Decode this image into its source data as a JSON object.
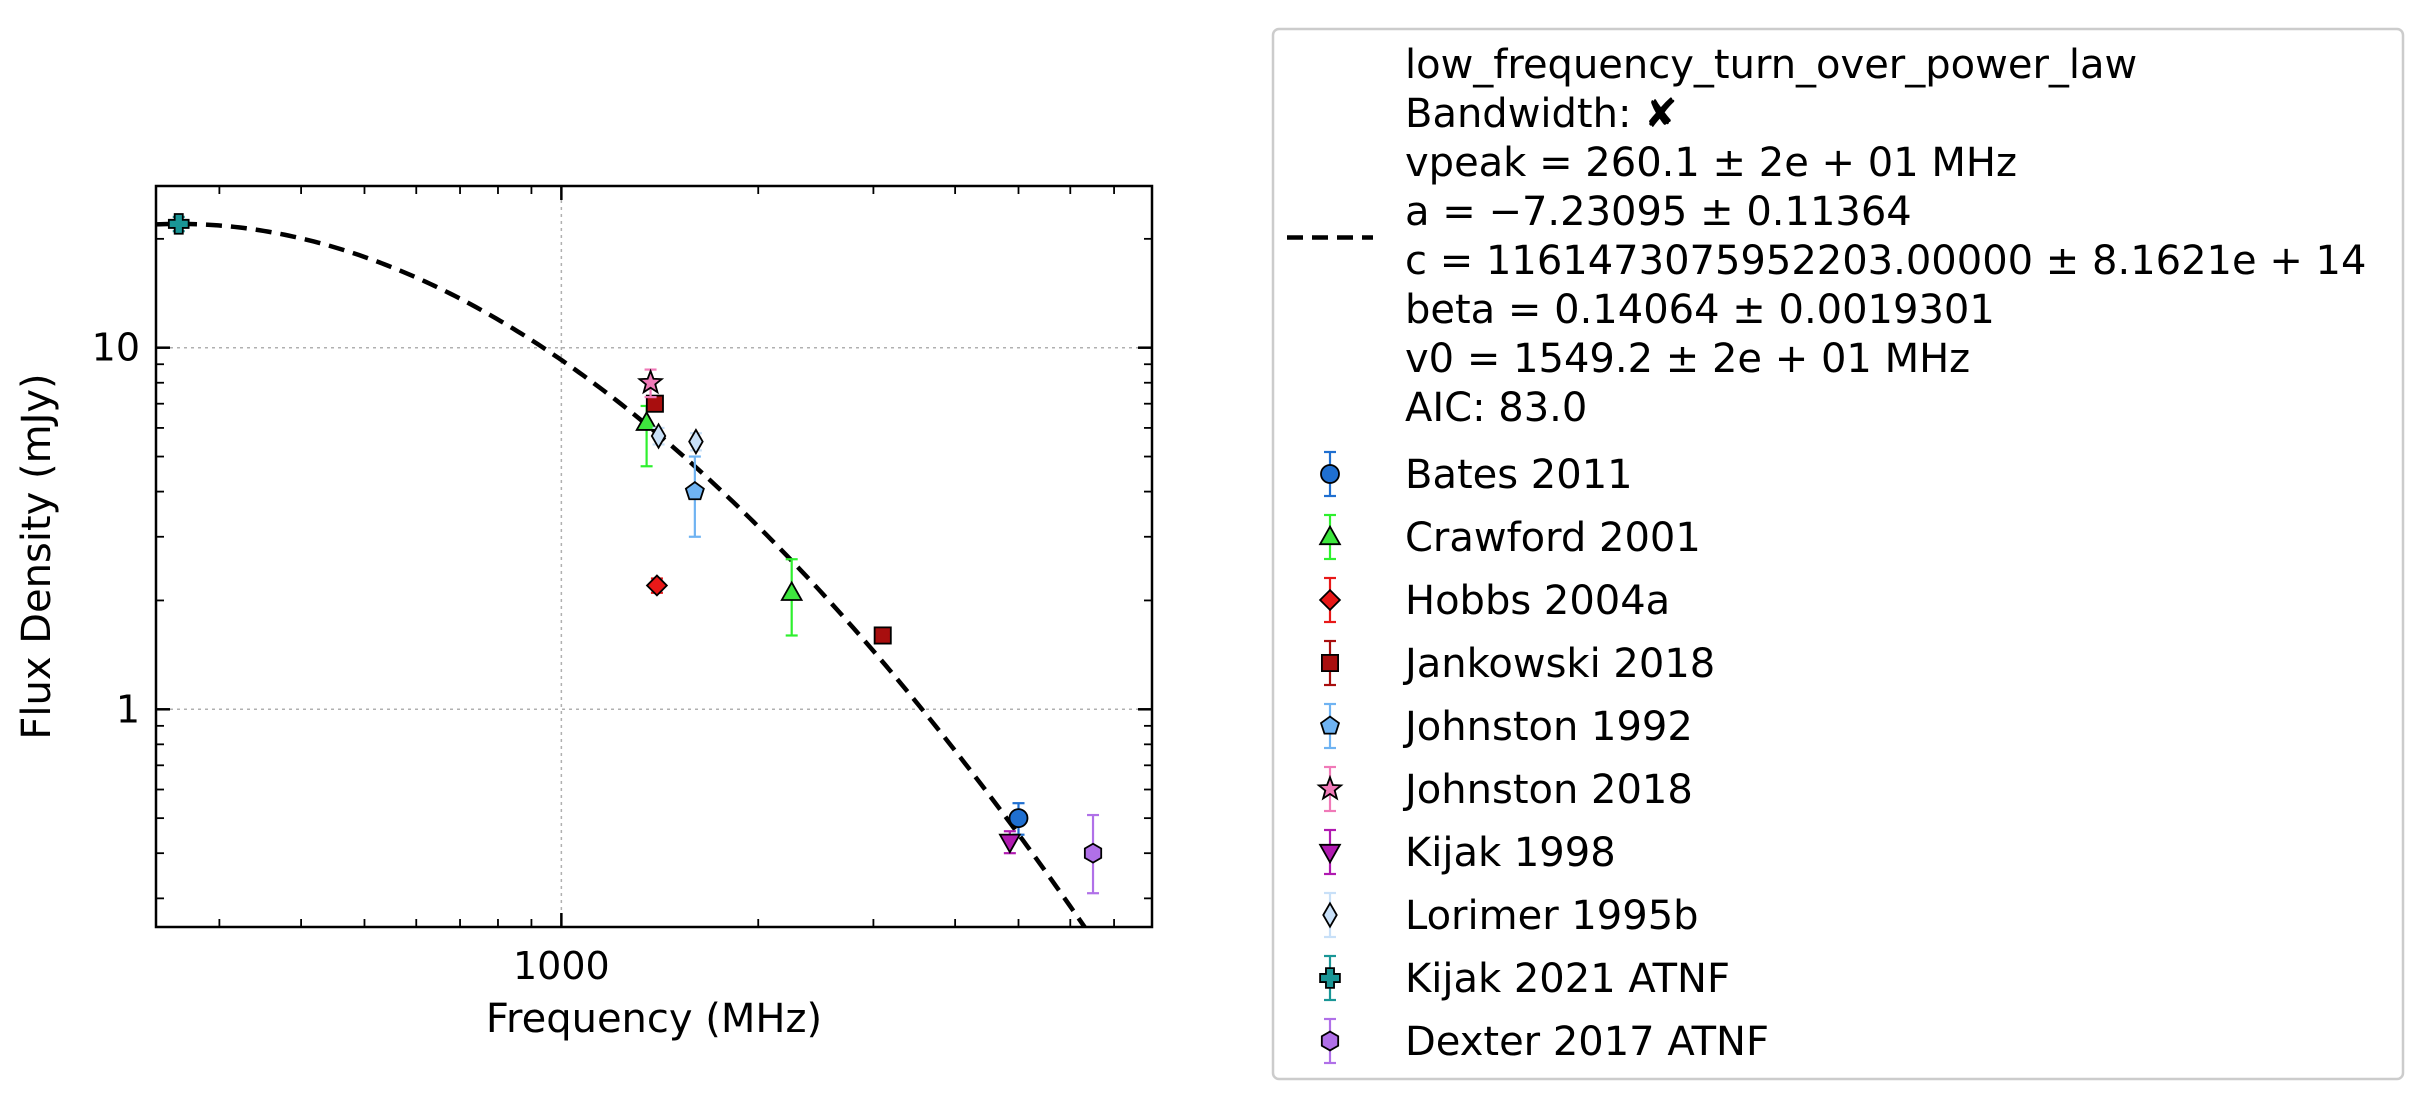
{
  "chart_data": {
    "type": "scatter",
    "xscale": "log",
    "yscale": "log",
    "xlabel": "Frequency (MHz)",
    "ylabel": "Flux Density (mJy)",
    "xlim": [
      240,
      8000
    ],
    "ylim": [
      0.25,
      28
    ],
    "grid": true,
    "legend_position": "outside-right",
    "x_ticks": [
      {
        "value": 1000,
        "label": "1000"
      }
    ],
    "y_ticks": [
      {
        "value": 1,
        "label": "1"
      },
      {
        "value": 10,
        "label": "10"
      }
    ],
    "fit": {
      "model": "low_frequency_turn_over_power_law",
      "style": "dashed",
      "color": "#000000",
      "vpeak": 260.1,
      "a": -7.23095,
      "beta": 0.14064,
      "v0": 1549.2,
      "legend_lines": [
        "low_frequency_turn_over_power_law",
        "Bandwidth: ✘",
        "vpeak = 260.1 ± 2e + 01 MHz",
        "a = −7.23095 ± 0.11364",
        "c = 1161473075952203.00000 ± 8.1621e + 14",
        "beta = 0.14064 ± 0.0019301",
        "v0 = 1549.2 ± 2e + 01 MHz",
        "AIC: 83.0"
      ]
    },
    "series": [
      {
        "name": "Bates 2011",
        "marker": "circle",
        "color": "#1f6fd0",
        "edge": "#000000",
        "errcolor": "#1f6fd0",
        "points": [
          {
            "x": 5000,
            "y": 0.5,
            "ylo": 0.45,
            "yhi": 0.55
          }
        ]
      },
      {
        "name": "Crawford 2001",
        "marker": "triangle-up",
        "color": "#3ee63e",
        "edge": "#000000",
        "errcolor": "#2ef02e",
        "points": [
          {
            "x": 1350,
            "y": 6.2,
            "ylo": 4.7,
            "yhi": 6.9
          },
          {
            "x": 2250,
            "y": 2.1,
            "ylo": 1.6,
            "yhi": 2.6
          }
        ]
      },
      {
        "name": "Hobbs 2004a",
        "marker": "diamond",
        "color": "#e81818",
        "edge": "#000000",
        "errcolor": "#e81818",
        "points": [
          {
            "x": 1400,
            "y": 2.2,
            "ylo": 2.1,
            "yhi": 2.3
          }
        ]
      },
      {
        "name": "Jankowski 2018",
        "marker": "square",
        "color": "#a80e0e",
        "edge": "#000000",
        "errcolor": "#a80e0e",
        "points": [
          {
            "x": 1390,
            "y": 7.0,
            "ylo": 6.7,
            "yhi": 7.3
          },
          {
            "x": 3100,
            "y": 1.6,
            "ylo": 1.55,
            "yhi": 1.65
          }
        ]
      },
      {
        "name": "Johnston 1992",
        "marker": "pentagon",
        "color": "#6fb3f2",
        "edge": "#000000",
        "errcolor": "#6fb3f2",
        "points": [
          {
            "x": 1600,
            "y": 4.0,
            "ylo": 3.0,
            "yhi": 5.0
          }
        ]
      },
      {
        "name": "Johnston 2018",
        "marker": "star",
        "color": "#f07ab8",
        "edge": "#000000",
        "errcolor": "#f07ab8",
        "points": [
          {
            "x": 1369,
            "y": 8.0,
            "ylo": 7.3,
            "yhi": 8.7
          }
        ]
      },
      {
        "name": "Kijak 1998",
        "marker": "triangle-down",
        "color": "#b01ab0",
        "edge": "#000000",
        "errcolor": "#b01ab0",
        "points": [
          {
            "x": 4850,
            "y": 0.43,
            "ylo": 0.4,
            "yhi": 0.46
          }
        ]
      },
      {
        "name": "Lorimer 1995b",
        "marker": "thin-diamond",
        "color": "#c8e0f8",
        "edge": "#000000",
        "errcolor": "#c8e0f8",
        "points": [
          {
            "x": 1408,
            "y": 5.7,
            "ylo": 5.4,
            "yhi": 6.0
          },
          {
            "x": 1606,
            "y": 5.5,
            "ylo": 5.2,
            "yhi": 5.8
          }
        ]
      },
      {
        "name": "Kijak 2021 ATNF",
        "marker": "plus",
        "color": "#1a9696",
        "edge": "#000000",
        "errcolor": "#1a9696",
        "points": [
          {
            "x": 260,
            "y": 22,
            "ylo": 21,
            "yhi": 23
          }
        ]
      },
      {
        "name": "Dexter 2017 ATNF",
        "marker": "hexagon",
        "color": "#b070e8",
        "edge": "#000000",
        "errcolor": "#b070e8",
        "points": [
          {
            "x": 6500,
            "y": 0.4,
            "ylo": 0.31,
            "yhi": 0.51
          }
        ]
      }
    ]
  }
}
